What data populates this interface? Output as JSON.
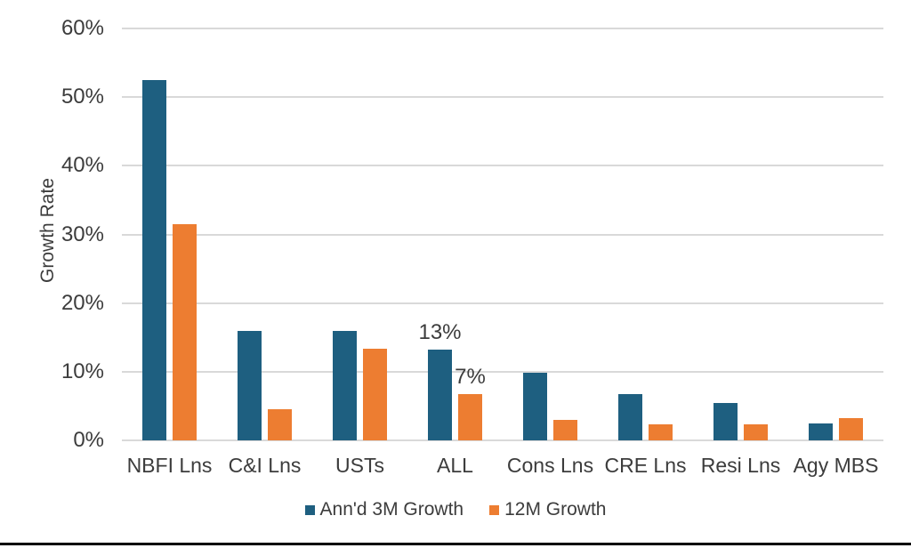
{
  "chart_data": {
    "type": "bar",
    "title": "",
    "xlabel": "",
    "ylabel": "Growth Rate",
    "ylim": [
      0,
      60
    ],
    "ytick_values": [
      0,
      10,
      20,
      30,
      40,
      50,
      60
    ],
    "ytick_labels": [
      "0%",
      "10%",
      "20%",
      "30%",
      "40%",
      "50%",
      "60%"
    ],
    "grid": true,
    "legend_position": "bottom",
    "categories": [
      "NBFI Lns",
      "C&I Lns",
      "USTs",
      "ALL",
      "Cons Lns",
      "CRE Lns",
      "Resi Lns",
      "Agy MBS"
    ],
    "series": [
      {
        "name": "Ann'd 3M Growth",
        "color": "#1E5F80",
        "values": [
          52.5,
          16.0,
          15.9,
          13.2,
          9.8,
          6.7,
          5.5,
          2.5
        ]
      },
      {
        "name": "12M Growth",
        "color": "#ED7D31",
        "values": [
          31.5,
          4.5,
          13.3,
          6.8,
          3.0,
          2.3,
          2.3,
          3.3
        ]
      }
    ],
    "annotations": [
      {
        "category": "ALL",
        "series_index": 0,
        "text": "13%"
      },
      {
        "category": "ALL",
        "series_index": 1,
        "text": "7%"
      }
    ]
  },
  "colors": {
    "grid": "#d9d9d9",
    "text": "#3c3c3c",
    "bottom_rule": "#000000"
  }
}
